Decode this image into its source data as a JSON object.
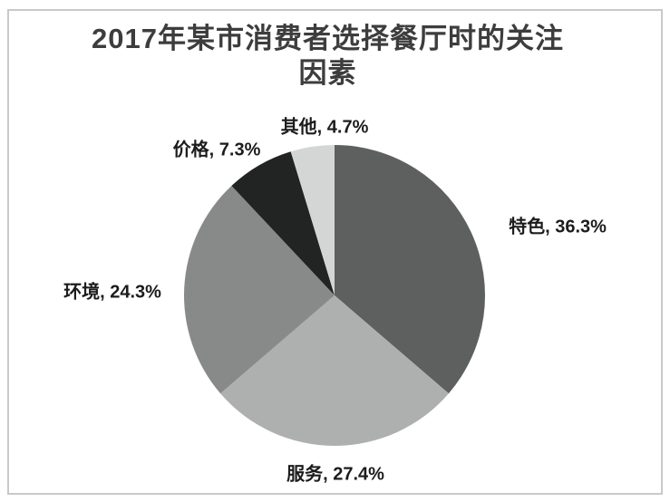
{
  "page": {
    "background_color": "#ffffff",
    "frame_border_color": "#c8caca"
  },
  "chart_data": {
    "type": "pie",
    "title": "2017年某市消费者选择餐厅时的关注因素",
    "title_lines": [
      "2017年某市消费者选择餐厅时的关注",
      "因素"
    ],
    "title_color": "#3d3d3d",
    "label_color": "#1c1c1c",
    "label_format": "{label}, {value}%",
    "start_angle_deg": 0,
    "direction": "clockwise",
    "legend": "none",
    "slices": [
      {
        "label": "特色",
        "value": 36.3,
        "color": "#5e6060"
      },
      {
        "label": "服务",
        "value": 27.4,
        "color": "#aeb0b0"
      },
      {
        "label": "环境",
        "value": 24.3,
        "color": "#888a8a"
      },
      {
        "label": "价格",
        "value": 7.3,
        "color": "#222424"
      },
      {
        "label": "其他",
        "value": 4.7,
        "color": "#d4d6d6"
      }
    ]
  }
}
